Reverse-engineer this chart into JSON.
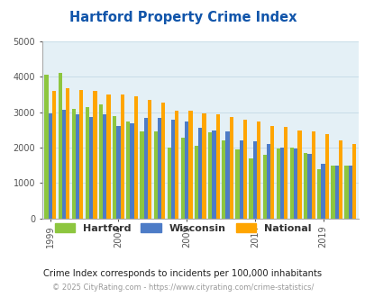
{
  "title": "Hartford Property Crime Index",
  "years": [
    1999,
    2000,
    2001,
    2002,
    2003,
    2004,
    2005,
    2006,
    2007,
    2008,
    2009,
    2010,
    2011,
    2012,
    2013,
    2014,
    2015,
    2016,
    2017,
    2018,
    2019,
    2020,
    2021
  ],
  "hartford": [
    4060,
    4110,
    3100,
    3150,
    3220,
    2880,
    2750,
    2450,
    2470,
    2000,
    2280,
    2050,
    2430,
    2200,
    1950,
    1700,
    1800,
    1980,
    2000,
    1850,
    1390,
    1490,
    1480
  ],
  "wisconsin": [
    2980,
    3080,
    2940,
    2870,
    2930,
    2620,
    2680,
    2830,
    2830,
    2780,
    2750,
    2550,
    2480,
    2450,
    2200,
    2180,
    2100,
    2000,
    1980,
    1820,
    1540,
    1490,
    1480
  ],
  "national": [
    3600,
    3670,
    3620,
    3610,
    3490,
    3500,
    3450,
    3350,
    3270,
    3050,
    3040,
    2960,
    2940,
    2870,
    2800,
    2740,
    2620,
    2590,
    2480,
    2450,
    2370,
    2200,
    2110
  ],
  "bar_colors": {
    "hartford": "#8dc63f",
    "wisconsin": "#4d7cc7",
    "national": "#ffa500"
  },
  "ylim": [
    0,
    5000
  ],
  "yticks": [
    0,
    1000,
    2000,
    3000,
    4000,
    5000
  ],
  "bg_color": "#e4f0f6",
  "grid_color": "#c8dde8",
  "subtitle": "Crime Index corresponds to incidents per 100,000 inhabitants",
  "footer": "© 2025 CityRating.com - https://www.cityrating.com/crime-statistics/",
  "title_color": "#1155aa",
  "subtitle_color": "#222222",
  "footer_color": "#999999",
  "legend_labels": [
    "Hartford",
    "Wisconsin",
    "National"
  ],
  "bar_width": 0.28,
  "tick_years": [
    1999,
    2004,
    2009,
    2014,
    2019
  ]
}
